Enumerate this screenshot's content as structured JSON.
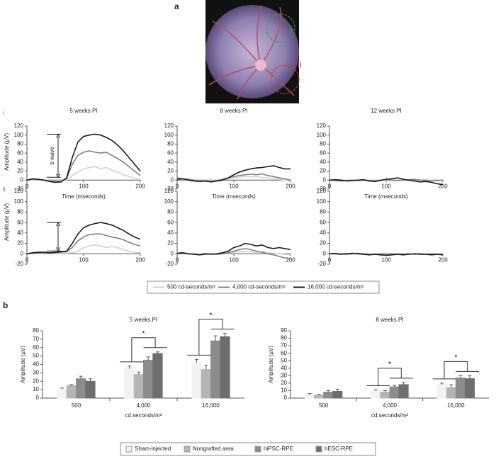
{
  "figure": {
    "panel_a": "a",
    "panel_b": "b",
    "region_labels": [
      "i",
      "ii"
    ]
  },
  "chart_data": [
    {
      "type": "line",
      "title": "5 weeks PI",
      "xlabel": "Time (mseconds)",
      "ylabel": "Amplitude (µV)",
      "annotation": "b wave",
      "xlim": [
        0,
        200
      ],
      "ylim": [
        -20,
        120
      ],
      "xticks": [
        0,
        100,
        200
      ],
      "yticks": [
        -20,
        0,
        20,
        40,
        60,
        80,
        100,
        120
      ],
      "x": [
        0,
        10,
        20,
        30,
        40,
        50,
        60,
        70,
        80,
        90,
        100,
        110,
        120,
        130,
        140,
        150,
        160,
        170,
        180,
        190,
        200
      ],
      "series": [
        {
          "name": "500 cd-seconds/m²",
          "color": "#d2d2d2",
          "values": [
            0,
            1,
            0,
            0,
            -1,
            -2,
            -1,
            0,
            10,
            18,
            25,
            28,
            30,
            25,
            28,
            22,
            18,
            12,
            8,
            5,
            2
          ]
        },
        {
          "name": "4,000 cd-seconds/m²",
          "color": "#7f7f7f",
          "values": [
            0,
            2,
            1,
            0,
            -2,
            -4,
            -3,
            3,
            35,
            55,
            62,
            65,
            62,
            60,
            62,
            55,
            48,
            40,
            30,
            20,
            10
          ]
        },
        {
          "name": "16,000 cd-seconds/m²",
          "color": "#1a1a1a",
          "values": [
            0,
            3,
            2,
            0,
            -3,
            -5,
            -4,
            5,
            50,
            85,
            97,
            100,
            102,
            100,
            95,
            88,
            78,
            65,
            50,
            35,
            20
          ]
        }
      ]
    },
    {
      "type": "line",
      "title": "8 weeks PI",
      "xlabel": "Time (mseconds)",
      "xlim": [
        0,
        200
      ],
      "ylim": [
        -20,
        120
      ],
      "xticks": [
        0,
        100,
        200
      ],
      "yticks": [
        -20,
        0,
        20,
        40,
        60,
        80,
        100,
        120
      ],
      "x": [
        0,
        10,
        20,
        30,
        40,
        50,
        60,
        70,
        80,
        90,
        100,
        110,
        120,
        130,
        140,
        150,
        160,
        170,
        180,
        190,
        200
      ],
      "series": [
        {
          "name": "500 cd-seconds/m²",
          "color": "#d2d2d2",
          "values": [
            3,
            2,
            1,
            0,
            -1,
            0,
            -1,
            0,
            1,
            3,
            5,
            6,
            8,
            7,
            8,
            6,
            5,
            3,
            2,
            0,
            -2
          ]
        },
        {
          "name": "4,000 cd-seconds/m²",
          "color": "#7f7f7f",
          "values": [
            5,
            3,
            2,
            0,
            -2,
            -1,
            -3,
            -1,
            2,
            5,
            8,
            10,
            12,
            13,
            12,
            14,
            10,
            8,
            5,
            3,
            0
          ]
        },
        {
          "name": "16,000 cd-seconds/m²",
          "color": "#1a1a1a",
          "values": [
            2,
            3,
            0,
            -2,
            -3,
            -2,
            -4,
            -2,
            0,
            5,
            12,
            18,
            22,
            25,
            27,
            28,
            30,
            32,
            28,
            25,
            25
          ]
        }
      ]
    },
    {
      "type": "line",
      "title": "12 weeks PI",
      "xlabel": "Time (mseconds)",
      "xlim": [
        0,
        200
      ],
      "ylim": [
        -20,
        120
      ],
      "xticks": [
        0,
        100,
        200
      ],
      "yticks": [
        -20,
        0,
        20,
        40,
        60,
        80,
        100,
        120
      ],
      "x": [
        0,
        10,
        20,
        30,
        40,
        50,
        60,
        70,
        80,
        90,
        100,
        110,
        120,
        130,
        140,
        150,
        160,
        170,
        180,
        190,
        200
      ],
      "series": [
        {
          "name": "500 cd-seconds/m²",
          "color": "#d2d2d2",
          "values": [
            0,
            0,
            1,
            0,
            -1,
            0,
            1,
            0,
            0,
            1,
            0,
            -1,
            0,
            1,
            0,
            -1,
            0,
            1,
            0,
            -1,
            0
          ]
        },
        {
          "name": "4,000 cd-seconds/m²",
          "color": "#7f7f7f",
          "values": [
            0,
            -1,
            -2,
            -1,
            0,
            -1,
            0,
            -1,
            -2,
            0,
            1,
            0,
            -1,
            0,
            1,
            2,
            0,
            -1,
            -2,
            -1,
            0
          ]
        },
        {
          "name": "16,000 cd-seconds/m²",
          "color": "#1a1a1a",
          "values": [
            0,
            1,
            0,
            -2,
            -1,
            0,
            1,
            -2,
            -3,
            -1,
            2,
            3,
            5,
            2,
            0,
            -2,
            -4,
            -3,
            -5,
            -8,
            -10
          ]
        }
      ]
    },
    {
      "type": "line",
      "ylabel": "Amplitude (µV)",
      "xlim": [
        0,
        200
      ],
      "ylim": [
        -20,
        120
      ],
      "xticks": [
        0,
        100,
        200
      ],
      "yticks": [
        -20,
        0,
        20,
        40,
        60,
        80,
        100,
        120
      ],
      "x": [
        0,
        10,
        20,
        30,
        40,
        50,
        60,
        70,
        80,
        90,
        100,
        110,
        120,
        130,
        140,
        150,
        160,
        170,
        180,
        190,
        200
      ],
      "series": [
        {
          "name": "500 cd-seconds/m²",
          "color": "#d2d2d2",
          "values": [
            0,
            0,
            0,
            1,
            0,
            0,
            1,
            1,
            2,
            5,
            12,
            15,
            17,
            15,
            12,
            14,
            12,
            8,
            5,
            3,
            2
          ]
        },
        {
          "name": "4,000 cd-seconds/m²",
          "color": "#7f7f7f",
          "values": [
            0,
            1,
            1,
            2,
            1,
            2,
            3,
            4,
            12,
            25,
            32,
            37,
            38,
            38,
            35,
            32,
            30,
            27,
            22,
            18,
            15
          ]
        },
        {
          "name": "16,000 cd-seconds/m²",
          "color": "#1a1a1a",
          "values": [
            0,
            2,
            3,
            3,
            2,
            3,
            4,
            5,
            20,
            38,
            50,
            55,
            58,
            60,
            58,
            55,
            50,
            45,
            38,
            32,
            28
          ]
        }
      ]
    },
    {
      "type": "line",
      "xlim": [
        0,
        200
      ],
      "ylim": [
        -20,
        120
      ],
      "xticks": [
        0,
        100,
        200
      ],
      "yticks": [
        -20,
        0,
        20,
        40,
        60,
        80,
        100,
        120
      ],
      "x": [
        0,
        10,
        20,
        30,
        40,
        50,
        60,
        70,
        80,
        90,
        100,
        110,
        120,
        130,
        140,
        150,
        160,
        170,
        180,
        190,
        200
      ],
      "series": [
        {
          "name": "500 cd-seconds/m²",
          "color": "#d2d2d2",
          "values": [
            0,
            1,
            0,
            -1,
            0,
            1,
            0,
            -1,
            0,
            1,
            3,
            4,
            5,
            4,
            3,
            4,
            2,
            1,
            0,
            -1,
            -2
          ]
        },
        {
          "name": "4,000 cd-seconds/m²",
          "color": "#7f7f7f",
          "values": [
            0,
            1,
            0,
            -1,
            -2,
            -1,
            0,
            -1,
            0,
            2,
            5,
            8,
            10,
            8,
            5,
            3,
            0,
            -2,
            -5,
            -8,
            -10
          ]
        },
        {
          "name": "16,000 cd-seconds/m²",
          "color": "#1a1a1a",
          "values": [
            1,
            2,
            0,
            -1,
            -2,
            0,
            -1,
            0,
            2,
            5,
            12,
            15,
            20,
            18,
            15,
            17,
            12,
            10,
            12,
            10,
            8
          ]
        }
      ]
    },
    {
      "type": "line",
      "xlim": [
        0,
        200
      ],
      "ylim": [
        -20,
        120
      ],
      "xticks": [
        0,
        100,
        200
      ],
      "yticks": [
        -20,
        0,
        20,
        40,
        60,
        80,
        100,
        120
      ],
      "x": [
        0,
        10,
        20,
        30,
        40,
        50,
        60,
        70,
        80,
        90,
        100,
        110,
        120,
        130,
        140,
        150,
        160,
        170,
        180,
        190,
        200
      ],
      "series": [
        {
          "name": "500 cd-seconds/m²",
          "color": "#d2d2d2",
          "values": [
            0,
            0,
            0,
            1,
            0,
            0,
            -1,
            0,
            0,
            0,
            1,
            0,
            0,
            -1,
            0,
            0,
            1,
            0,
            0,
            0,
            0
          ]
        },
        {
          "name": "4,000 cd-seconds/m²",
          "color": "#7f7f7f",
          "values": [
            0,
            1,
            0,
            -1,
            0,
            1,
            0,
            -1,
            -1,
            0,
            -1,
            0,
            -1,
            -1,
            0,
            -1,
            0,
            -1,
            0,
            -1,
            -1
          ]
        },
        {
          "name": "16,000 cd-seconds/m²",
          "color": "#1a1a1a",
          "values": [
            0,
            0,
            -1,
            0,
            1,
            0,
            -1,
            -2,
            -1,
            -2,
            -3,
            -2,
            -1,
            -2,
            -1,
            0,
            -1,
            -1,
            -2,
            -1,
            -2
          ]
        }
      ]
    },
    {
      "type": "bar",
      "title": "5 weeks PI",
      "xlabel": "cd.seconds/m²",
      "ylabel": "Amplitude (µV)",
      "categories": [
        "500",
        "4,000",
        "16,000"
      ],
      "ylim": [
        0,
        80
      ],
      "yticks": [
        0,
        10,
        20,
        30,
        40,
        50,
        60,
        70,
        80
      ],
      "series": [
        {
          "name": "Sham-injected",
          "color": "#f2f2f2",
          "values": [
            11,
            35,
            42
          ],
          "errors": [
            1,
            3,
            4
          ]
        },
        {
          "name": "Nongrafted area",
          "color": "#b5b5b5",
          "values": [
            15,
            28,
            34
          ],
          "errors": [
            1,
            3,
            5
          ]
        },
        {
          "name": "hiPSC-RPE",
          "color": "#8c8c8c",
          "values": [
            23,
            45,
            68
          ],
          "errors": [
            3,
            4,
            6
          ]
        },
        {
          "name": "hESC-RPE",
          "color": "#6e6e6e",
          "values": [
            20,
            53,
            73
          ],
          "errors": [
            3,
            2,
            4
          ]
        }
      ],
      "annotations": [
        {
          "category": "4,000",
          "text": "*"
        },
        {
          "category": "16,000",
          "text": "*"
        }
      ]
    },
    {
      "type": "bar",
      "title": "8 weeks PI",
      "xlabel": "cd.seconds/m²",
      "ylabel": "Amplitude (µV)",
      "categories": [
        "500",
        "4,000",
        "16,000"
      ],
      "ylim": [
        0,
        90
      ],
      "yticks": [
        0,
        10,
        20,
        30,
        40,
        50,
        60,
        70,
        80,
        90
      ],
      "series": [
        {
          "name": "Sham-injected",
          "color": "#f2f2f2",
          "values": [
            5,
            10,
            18
          ],
          "errors": [
            1,
            1,
            2
          ]
        },
        {
          "name": "Nongrafted area",
          "color": "#b5b5b5",
          "values": [
            4,
            8,
            14
          ],
          "errors": [
            1,
            2,
            4
          ]
        },
        {
          "name": "hiPSC-RPE",
          "color": "#8c8c8c",
          "values": [
            8,
            15,
            27
          ],
          "errors": [
            2,
            2,
            3
          ]
        },
        {
          "name": "hESC-RPE",
          "color": "#6e6e6e",
          "values": [
            9,
            18,
            26
          ],
          "errors": [
            3,
            3,
            4
          ]
        }
      ],
      "annotations": [
        {
          "category": "4,000",
          "text": "*"
        },
        {
          "category": "16,000",
          "text": "*"
        }
      ]
    }
  ]
}
